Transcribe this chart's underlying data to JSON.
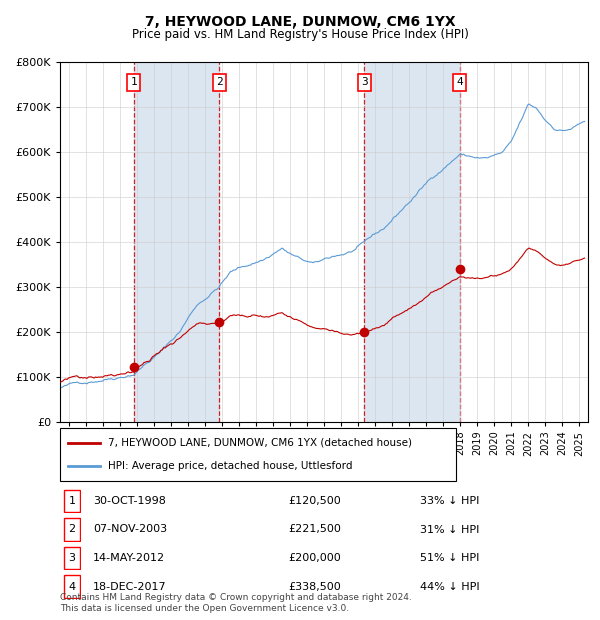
{
  "title": "7, HEYWOOD LANE, DUNMOW, CM6 1YX",
  "subtitle": "Price paid vs. HM Land Registry's House Price Index (HPI)",
  "legend_property": "7, HEYWOOD LANE, DUNMOW, CM6 1YX (detached house)",
  "legend_hpi": "HPI: Average price, detached house, Uttlesford",
  "footer": "Contains HM Land Registry data © Crown copyright and database right 2024.\nThis data is licensed under the Open Government Licence v3.0.",
  "sales": [
    {
      "num": 1,
      "date": "30-OCT-1998",
      "price": 120500,
      "pct": "33%",
      "dir": "↓"
    },
    {
      "num": 2,
      "date": "07-NOV-2003",
      "price": 221500,
      "pct": "31%",
      "dir": "↓"
    },
    {
      "num": 3,
      "date": "14-MAY-2012",
      "price": 200000,
      "pct": "51%",
      "dir": "↓"
    },
    {
      "num": 4,
      "date": "18-DEC-2017",
      "price": 338500,
      "pct": "44%",
      "dir": "↓"
    }
  ],
  "sale_years": [
    1998.83,
    2003.85,
    2012.37,
    2017.96
  ],
  "sale_prices": [
    120500,
    221500,
    200000,
    338500
  ],
  "hpi_color": "#5b9bd5",
  "property_color": "#c00000",
  "vline_color": "#cc0000",
  "background_shade_color": "#dce6f1",
  "ylim": [
    0,
    800000
  ],
  "xlim_start": 1994.5,
  "xlim_end": 2025.5,
  "ytick_values": [
    0,
    100000,
    200000,
    300000,
    400000,
    500000,
    600000,
    700000,
    800000
  ]
}
